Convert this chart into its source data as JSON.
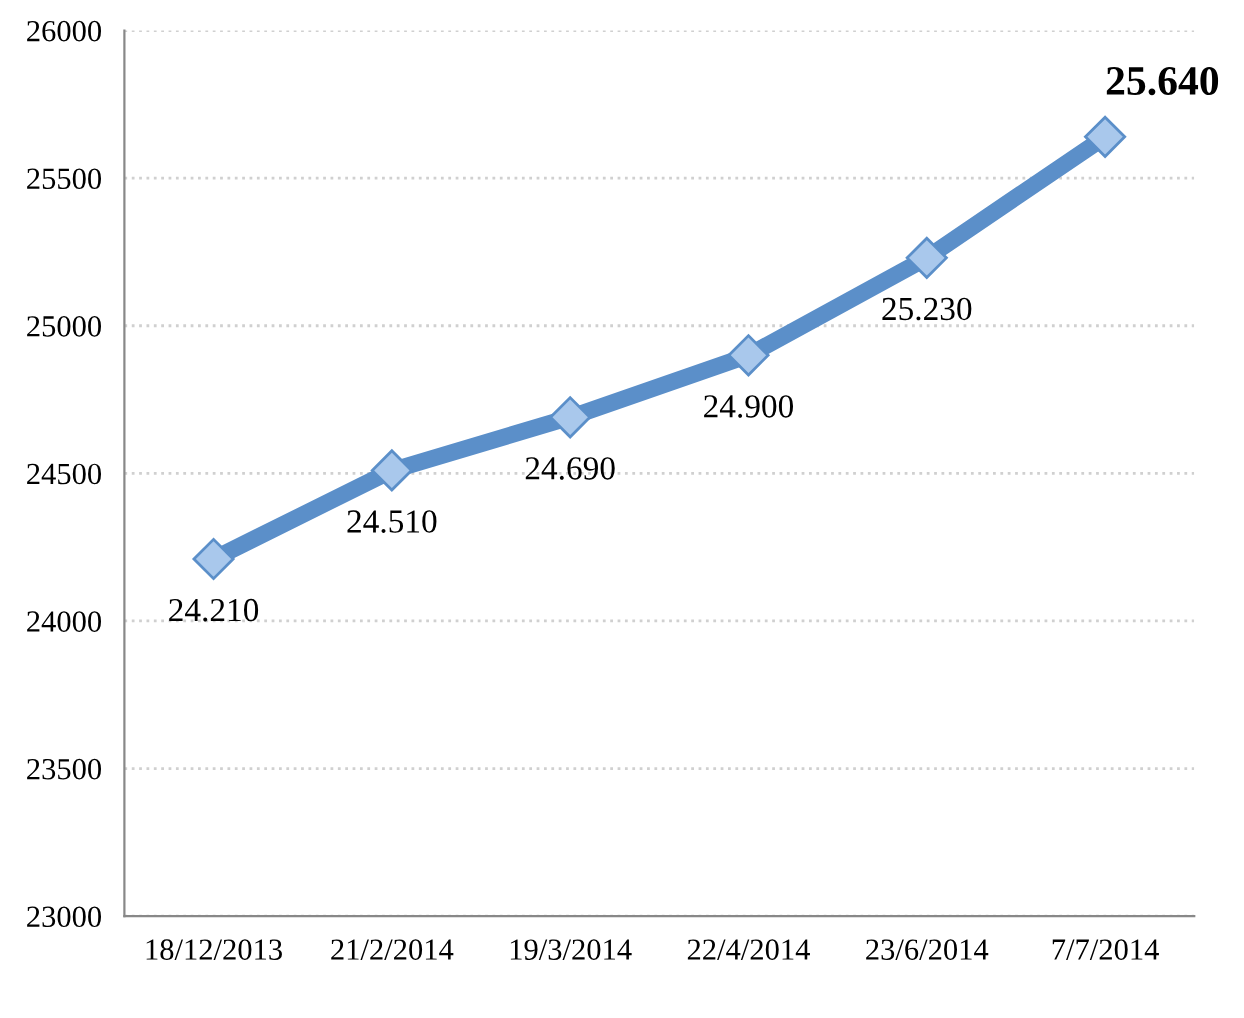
{
  "chart_data": {
    "type": "line",
    "categories": [
      "18/12/2013",
      "21/2/2014",
      "19/3/2014",
      "22/4/2014",
      "23/6/2014",
      "7/7/2014"
    ],
    "series": [
      {
        "color": "#5b8fc9",
        "values": [
          24210,
          24510,
          24690,
          24900,
          25230,
          25640
        ],
        "value_labels": [
          "24.210",
          "24.510",
          "24.690",
          "24.900",
          "25.230",
          "25.640"
        ]
      }
    ],
    "ylim": [
      23000,
      26000
    ],
    "yticks": [
      23000,
      23500,
      24000,
      24500,
      25000,
      25500,
      26000
    ],
    "grid": "y",
    "marker": "diamond",
    "line_style": "solid"
  }
}
